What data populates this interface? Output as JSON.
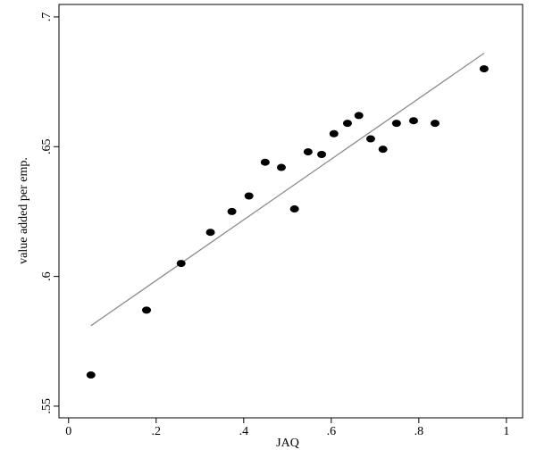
{
  "chart_data": {
    "type": "scatter",
    "x_label": "JAQ",
    "y_label": "value added per emp.",
    "x": [
      0.051,
      0.178,
      0.257,
      0.324,
      0.373,
      0.412,
      0.449,
      0.486,
      0.516,
      0.547,
      0.578,
      0.606,
      0.637,
      0.663,
      0.69,
      0.718,
      0.749,
      0.788,
      0.837,
      0.949
    ],
    "values": [
      0.562,
      0.587,
      0.605,
      0.617,
      0.625,
      0.631,
      0.644,
      0.642,
      0.626,
      0.648,
      0.647,
      0.655,
      0.659,
      0.662,
      0.653,
      0.649,
      0.659,
      0.66,
      0.659,
      0.68
    ],
    "color": "#000000",
    "fit_line": {
      "x": [
        0.051,
        0.949
      ],
      "y": [
        0.581,
        0.686
      ],
      "color": "#8c8c8c"
    },
    "xlim": [
      -0.022,
      1.037
    ],
    "ylim": [
      0.5455,
      0.7048
    ],
    "xticks": [
      0,
      {
        "value": 0.2,
        "label": ".2"
      },
      {
        "value": 0.4,
        "label": ".4"
      },
      {
        "value": 0.6,
        "label": ".6"
      },
      {
        "value": 0.8,
        "label": ".8"
      },
      1
    ],
    "yticks": [
      {
        "value": 0.55,
        "label": ".55"
      },
      {
        "value": 0.6,
        "label": ".6"
      },
      {
        "value": 0.65,
        "label": ".65"
      },
      {
        "value": 0.7,
        "label": ".7"
      }
    ]
  }
}
